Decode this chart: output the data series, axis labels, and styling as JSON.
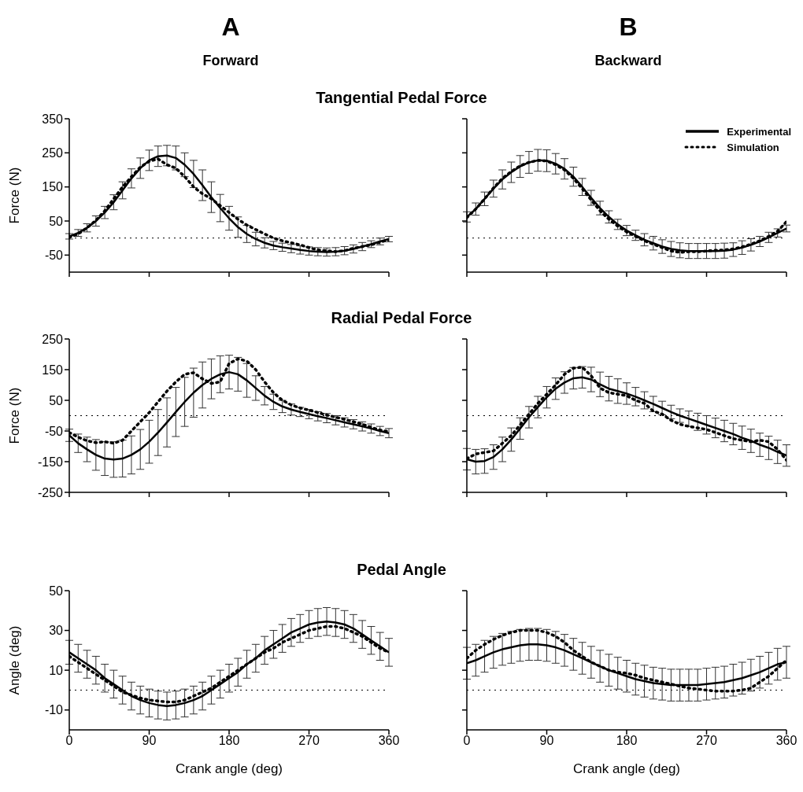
{
  "chart_data": [
    {
      "type": "line",
      "title": "Tangential Pedal Force",
      "annotations": [
        "A",
        "Forward"
      ],
      "ylabel": "Force (N)",
      "x": [
        0,
        10,
        20,
        30,
        40,
        50,
        60,
        70,
        80,
        90,
        100,
        110,
        120,
        130,
        140,
        150,
        160,
        170,
        180,
        190,
        200,
        210,
        220,
        230,
        240,
        250,
        260,
        270,
        280,
        290,
        300,
        310,
        320,
        330,
        340,
        350,
        360
      ],
      "xlim": [
        0,
        360
      ],
      "xticks": [
        0,
        90,
        180,
        270,
        360
      ],
      "ylim": [
        -100,
        350
      ],
      "yticks": [
        -50,
        50,
        150,
        250,
        350
      ],
      "tick_labels": "y",
      "legend": false,
      "ref_lines": [
        {
          "axis": "y",
          "value": 0,
          "line_style": "dotted"
        }
      ],
      "series": [
        {
          "color": "#000000",
          "line_style": "solid",
          "values": [
            5,
            15,
            30,
            50,
            75,
            105,
            140,
            175,
            205,
            228,
            240,
            242,
            235,
            215,
            188,
            155,
            120,
            88,
            58,
            32,
            12,
            -3,
            -14,
            -22,
            -27,
            -31,
            -35,
            -38,
            -40,
            -41,
            -40,
            -37,
            -32,
            -25,
            -18,
            -10,
            -3
          ],
          "errors": [
            8,
            10,
            12,
            15,
            18,
            22,
            25,
            28,
            30,
            30,
            30,
            30,
            35,
            35,
            40,
            45,
            45,
            40,
            35,
            30,
            25,
            20,
            15,
            12,
            12,
            12,
            12,
            12,
            12,
            12,
            12,
            12,
            12,
            12,
            10,
            10,
            8
          ]
        },
        {
          "color": "#000000",
          "line_style": "dotted",
          "values": [
            2,
            12,
            30,
            52,
            80,
            115,
            150,
            180,
            208,
            225,
            232,
            215,
            205,
            180,
            150,
            130,
            115,
            95,
            75,
            55,
            38,
            25,
            12,
            0,
            -8,
            -14,
            -20,
            -28,
            -35,
            -37,
            -40,
            -37,
            -30,
            -25,
            -20,
            -12,
            -5
          ]
        }
      ]
    },
    {
      "type": "line",
      "x": [
        0,
        10,
        20,
        30,
        40,
        50,
        60,
        70,
        80,
        90,
        100,
        110,
        120,
        130,
        140,
        150,
        160,
        170,
        180,
        190,
        200,
        210,
        220,
        230,
        240,
        250,
        260,
        270,
        280,
        290,
        300,
        310,
        320,
        330,
        340,
        350,
        360
      ],
      "annotations": [
        "B",
        "Backward"
      ],
      "xlim": [
        0,
        360
      ],
      "xticks": [
        0,
        90,
        180,
        270,
        360
      ],
      "ylim": [
        -100,
        350
      ],
      "yticks": [
        -50,
        50,
        150,
        250,
        350
      ],
      "tick_labels": false,
      "legend": "top right",
      "ref_lines": [
        {
          "axis": "y",
          "value": 0,
          "line_style": "dotted"
        }
      ],
      "series": [
        {
          "name": "Experimental",
          "color": "#000000",
          "line_style": "solid",
          "values": [
            62,
            85,
            115,
            145,
            172,
            193,
            210,
            222,
            228,
            227,
            218,
            203,
            180,
            150,
            118,
            88,
            62,
            40,
            22,
            8,
            -5,
            -15,
            -25,
            -32,
            -36,
            -38,
            -38,
            -38,
            -38,
            -37,
            -34,
            -28,
            -20,
            -10,
            2,
            15,
            28
          ],
          "errors": [
            15,
            18,
            20,
            25,
            28,
            30,
            32,
            32,
            32,
            32,
            30,
            30,
            28,
            25,
            22,
            20,
            18,
            15,
            15,
            15,
            18,
            20,
            20,
            22,
            22,
            22,
            22,
            22,
            22,
            22,
            20,
            20,
            18,
            15,
            15,
            12,
            10
          ]
        },
        {
          "name": "Simulation",
          "color": "#000000",
          "line_style": "dotted",
          "values": [
            60,
            85,
            115,
            147,
            175,
            195,
            212,
            222,
            228,
            226,
            215,
            200,
            175,
            145,
            112,
            80,
            55,
            35,
            18,
            5,
            -8,
            -18,
            -28,
            -38,
            -42,
            -40,
            -40,
            -38,
            -36,
            -35,
            -32,
            -26,
            -18,
            -8,
            5,
            20,
            48
          ]
        }
      ]
    },
    {
      "type": "line",
      "title": "Radial Pedal Force",
      "ylabel": "Force (N)",
      "x": [
        0,
        10,
        20,
        30,
        40,
        50,
        60,
        70,
        80,
        90,
        100,
        110,
        120,
        130,
        140,
        150,
        160,
        170,
        180,
        190,
        200,
        210,
        220,
        230,
        240,
        250,
        260,
        270,
        280,
        290,
        300,
        310,
        320,
        330,
        340,
        350,
        360
      ],
      "xlim": [
        0,
        360
      ],
      "xticks": [
        0,
        90,
        180,
        270,
        360
      ],
      "ylim": [
        -250,
        250
      ],
      "yticks": [
        -250,
        -150,
        -50,
        50,
        150,
        250
      ],
      "tick_labels": "y",
      "legend": false,
      "ref_lines": [
        {
          "axis": "y",
          "value": 0,
          "line_style": "dotted"
        }
      ],
      "series": [
        {
          "color": "#000000",
          "line_style": "solid",
          "values": [
            -64,
            -90,
            -110,
            -128,
            -140,
            -143,
            -140,
            -128,
            -110,
            -85,
            -55,
            -22,
            12,
            45,
            75,
            100,
            120,
            135,
            142,
            135,
            115,
            90,
            65,
            45,
            30,
            20,
            12,
            5,
            -2,
            -8,
            -15,
            -22,
            -28,
            -35,
            -42,
            -50,
            -57
          ],
          "errors": [
            20,
            30,
            40,
            50,
            55,
            58,
            60,
            62,
            65,
            70,
            75,
            80,
            80,
            80,
            80,
            75,
            65,
            60,
            55,
            55,
            55,
            40,
            30,
            25,
            20,
            18,
            15,
            15,
            15,
            15,
            15,
            15,
            15,
            15,
            15,
            15,
            15
          ]
        },
        {
          "color": "#000000",
          "line_style": "dotted",
          "values": [
            -55,
            -70,
            -82,
            -88,
            -85,
            -90,
            -80,
            -50,
            -20,
            10,
            45,
            80,
            110,
            135,
            140,
            120,
            105,
            110,
            170,
            185,
            178,
            150,
            110,
            75,
            50,
            35,
            25,
            18,
            10,
            2,
            -5,
            -12,
            -20,
            -28,
            -38,
            -47,
            -52
          ]
        }
      ]
    },
    {
      "type": "line",
      "x": [
        0,
        10,
        20,
        30,
        40,
        50,
        60,
        70,
        80,
        90,
        100,
        110,
        120,
        130,
        140,
        150,
        160,
        170,
        180,
        190,
        200,
        210,
        220,
        230,
        240,
        250,
        260,
        270,
        280,
        290,
        300,
        310,
        320,
        330,
        340,
        350,
        360
      ],
      "xlim": [
        0,
        360
      ],
      "xticks": [
        0,
        90,
        180,
        270,
        360
      ],
      "ylim": [
        -250,
        250
      ],
      "yticks": [
        -250,
        -150,
        -50,
        50,
        150,
        250
      ],
      "tick_labels": false,
      "legend": false,
      "ref_lines": [
        {
          "axis": "y",
          "value": 0,
          "line_style": "dotted"
        }
      ],
      "series": [
        {
          "color": "#000000",
          "line_style": "solid",
          "values": [
            -142,
            -150,
            -148,
            -135,
            -110,
            -78,
            -42,
            -5,
            28,
            60,
            88,
            108,
            122,
            125,
            118,
            102,
            88,
            80,
            72,
            62,
            50,
            38,
            25,
            12,
            0,
            -10,
            -20,
            -30,
            -40,
            -50,
            -60,
            -72,
            -82,
            -95,
            -105,
            -118,
            -130
          ],
          "errors": [
            35,
            40,
            40,
            40,
            40,
            38,
            35,
            35,
            35,
            35,
            35,
            35,
            35,
            35,
            40,
            40,
            40,
            40,
            35,
            30,
            28,
            25,
            22,
            22,
            22,
            25,
            28,
            30,
            32,
            35,
            35,
            38,
            38,
            38,
            38,
            38,
            35
          ]
        },
        {
          "color": "#000000",
          "line_style": "dotted",
          "values": [
            -140,
            -125,
            -120,
            -115,
            -90,
            -65,
            -30,
            5,
            40,
            70,
            100,
            135,
            155,
            158,
            130,
            90,
            75,
            70,
            65,
            50,
            40,
            15,
            5,
            -15,
            -28,
            -35,
            -40,
            -45,
            -55,
            -65,
            -75,
            -80,
            -85,
            -80,
            -85,
            -110,
            -145
          ]
        }
      ]
    },
    {
      "type": "line",
      "title": "Pedal Angle",
      "ylabel": "Angle (deg)",
      "xlabel": "Crank angle (deg)",
      "x": [
        0,
        10,
        20,
        30,
        40,
        50,
        60,
        70,
        80,
        90,
        100,
        110,
        120,
        130,
        140,
        150,
        160,
        170,
        180,
        190,
        200,
        210,
        220,
        230,
        240,
        250,
        260,
        270,
        280,
        290,
        300,
        310,
        320,
        330,
        340,
        350,
        360
      ],
      "xlim": [
        0,
        360
      ],
      "xticks": [
        0,
        90,
        180,
        270,
        360
      ],
      "ylim": [
        -20,
        50
      ],
      "yticks": [
        -10,
        10,
        30,
        50
      ],
      "legend": false,
      "ref_lines": [
        {
          "axis": "y",
          "value": 0,
          "line_style": "dotted"
        }
      ],
      "series": [
        {
          "color": "#000000",
          "line_style": "solid",
          "values": [
            19,
            16,
            13,
            10,
            6,
            3,
            0,
            -3,
            -5,
            -6.5,
            -7.5,
            -8,
            -7.5,
            -6.5,
            -5,
            -3,
            0,
            3,
            6,
            9,
            13,
            16,
            20,
            23,
            26,
            29,
            31,
            33,
            34,
            34.5,
            34,
            33,
            31,
            28,
            25,
            22,
            19
          ],
          "errors": [
            6,
            7,
            7,
            7,
            7,
            7,
            7,
            7,
            7,
            7,
            7,
            7,
            7,
            7,
            7,
            7,
            7,
            7,
            7,
            7,
            7,
            7,
            7,
            7,
            7,
            7,
            7,
            7,
            7,
            7,
            7,
            7,
            7,
            7,
            7,
            7,
            7
          ]
        },
        {
          "color": "#000000",
          "line_style": "dotted",
          "values": [
            17,
            14,
            11,
            8,
            5,
            2,
            -1,
            -2.5,
            -4,
            -5,
            -5.5,
            -6,
            -6,
            -5,
            -3,
            -1,
            1,
            4,
            7,
            10,
            13,
            16,
            19,
            21,
            24,
            26,
            28,
            30,
            31,
            32,
            32,
            31,
            29,
            27,
            24,
            21,
            19
          ]
        }
      ]
    },
    {
      "type": "line",
      "xlabel": "Crank angle (deg)",
      "x": [
        0,
        10,
        20,
        30,
        40,
        50,
        60,
        70,
        80,
        90,
        100,
        110,
        120,
        130,
        140,
        150,
        160,
        170,
        180,
        190,
        200,
        210,
        220,
        230,
        240,
        250,
        260,
        270,
        280,
        290,
        300,
        310,
        320,
        330,
        340,
        350,
        360
      ],
      "xlim": [
        0,
        360
      ],
      "xticks": [
        0,
        90,
        180,
        270,
        360
      ],
      "ylim": [
        -20,
        50
      ],
      "yticks": [
        -10,
        10,
        30,
        50
      ],
      "tick_labels": "x",
      "legend": false,
      "ref_lines": [
        {
          "axis": "y",
          "value": 0,
          "line_style": "dotted"
        }
      ],
      "series": [
        {
          "color": "#000000",
          "line_style": "solid",
          "values": [
            13.5,
            15,
            17,
            19,
            20.5,
            21.5,
            22.5,
            23,
            23,
            22.5,
            21.5,
            20,
            18,
            16,
            14,
            12,
            10,
            8.5,
            7,
            5.5,
            4.5,
            3.5,
            3,
            2.5,
            2.5,
            2.5,
            2.5,
            3,
            3.5,
            4,
            5,
            6,
            7.5,
            9,
            11,
            13,
            14
          ],
          "errors": [
            8,
            8,
            8,
            8,
            8,
            8,
            8,
            8,
            8,
            8,
            8,
            8,
            8,
            8,
            8,
            8,
            8,
            8,
            8,
            8,
            8,
            8,
            8,
            8,
            8,
            8,
            8,
            8,
            8,
            8,
            8,
            8,
            8,
            8,
            8,
            8,
            8
          ]
        },
        {
          "color": "#000000",
          "line_style": "dotted",
          "values": [
            16,
            20,
            23,
            25.5,
            27.5,
            29,
            30,
            30,
            30,
            29,
            27,
            24,
            20,
            17,
            14,
            12,
            10,
            9,
            8.5,
            7.5,
            6,
            5,
            4,
            3,
            2,
            1,
            0.5,
            0,
            -0.5,
            -0.5,
            -0.5,
            0,
            1,
            4,
            7,
            11,
            15
          ]
        }
      ]
    }
  ]
}
